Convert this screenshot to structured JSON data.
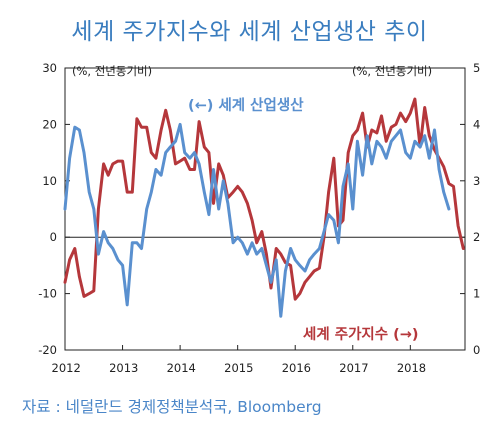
{
  "title": "세계 주가지수와 세계 산업생산 추이",
  "source": "자료 : 네덜란드 경제정책분석국, Bloomberg",
  "chart_data": {
    "type": "line",
    "left_unit": "(%, 전년동기비)",
    "right_unit": "(%, 전년동기비)",
    "x_ticks": [
      "2012",
      "2013",
      "2014",
      "2015",
      "2016",
      "2017",
      "2018"
    ],
    "left_ticks": [
      "30",
      "20",
      "10",
      "0",
      "-10",
      "-20"
    ],
    "right_ticks": [
      "5",
      "4",
      "3",
      "2",
      "1",
      "0"
    ],
    "left_ylim": [
      -20,
      30
    ],
    "right_ylim": [
      0,
      5
    ],
    "x_range": [
      2012.0,
      2018.95
    ],
    "colors": {
      "production": "#5a90cf",
      "stock": "#b5373b"
    },
    "series": [
      {
        "name": "(←) 세계 산업생산",
        "axis": "left",
        "x": [
          2012.0,
          2012.08,
          2012.17,
          2012.25,
          2012.33,
          2012.42,
          2012.5,
          2012.58,
          2012.67,
          2012.75,
          2012.83,
          2012.92,
          2013.0,
          2013.08,
          2013.17,
          2013.25,
          2013.33,
          2013.42,
          2013.5,
          2013.58,
          2013.67,
          2013.75,
          2013.83,
          2013.92,
          2014.0,
          2014.08,
          2014.17,
          2014.25,
          2014.33,
          2014.42,
          2014.5,
          2014.58,
          2014.67,
          2014.75,
          2014.83,
          2014.92,
          2015.0,
          2015.08,
          2015.17,
          2015.25,
          2015.33,
          2015.42,
          2015.5,
          2015.58,
          2015.67,
          2015.75,
          2015.83,
          2015.92,
          2016.0,
          2016.08,
          2016.17,
          2016.25,
          2016.33,
          2016.42,
          2016.5,
          2016.58,
          2016.67,
          2016.75,
          2016.83,
          2016.92,
          2017.0,
          2017.08,
          2017.17,
          2017.25,
          2017.33,
          2017.42,
          2017.5,
          2017.58,
          2017.67,
          2017.75,
          2017.83,
          2017.92,
          2018.0,
          2018.08,
          2018.17,
          2018.25,
          2018.33,
          2018.42,
          2018.5,
          2018.58,
          2018.67
        ],
        "values": [
          5,
          14,
          19.5,
          19,
          15,
          8,
          5,
          -3,
          1,
          -1,
          -2,
          -4,
          -5,
          -12,
          -1,
          -1,
          -2,
          5,
          8,
          12,
          11,
          15,
          16,
          17,
          20,
          15,
          14,
          15,
          13,
          8,
          4,
          12,
          5,
          10,
          6,
          -1,
          0,
          -1,
          -3,
          -1,
          -3,
          -2,
          -5,
          -8,
          -4,
          -14,
          -6,
          -2,
          -4,
          -5,
          -6,
          -4,
          -3,
          -2,
          1,
          4,
          3,
          -1,
          9,
          13,
          5,
          17,
          11,
          18,
          13,
          17,
          16,
          14,
          17,
          18,
          19,
          15,
          14,
          17,
          16,
          18,
          14,
          19,
          12,
          8,
          5
        ]
      },
      {
        "name": "세계 주가지수 (→)",
        "axis": "right",
        "x": [
          2012.0,
          2012.08,
          2012.17,
          2012.25,
          2012.33,
          2012.42,
          2012.5,
          2012.58,
          2012.67,
          2012.75,
          2012.83,
          2012.92,
          2013.0,
          2013.08,
          2013.17,
          2013.25,
          2013.33,
          2013.42,
          2013.5,
          2013.58,
          2013.67,
          2013.75,
          2013.83,
          2013.92,
          2014.0,
          2014.08,
          2014.17,
          2014.25,
          2014.33,
          2014.42,
          2014.5,
          2014.58,
          2014.67,
          2014.75,
          2014.83,
          2014.92,
          2015.0,
          2015.08,
          2015.17,
          2015.25,
          2015.33,
          2015.42,
          2015.5,
          2015.58,
          2015.67,
          2015.75,
          2015.83,
          2015.92,
          2016.0,
          2016.08,
          2016.17,
          2016.25,
          2016.33,
          2016.42,
          2016.5,
          2016.58,
          2016.67,
          2016.75,
          2016.83,
          2016.92,
          2017.0,
          2017.08,
          2017.17,
          2017.25,
          2017.33,
          2017.42,
          2017.5,
          2017.58,
          2017.67,
          2017.75,
          2017.83,
          2017.92,
          2018.0,
          2018.08,
          2018.17,
          2018.25,
          2018.33,
          2018.42,
          2018.5,
          2018.58,
          2018.67,
          2018.75,
          2018.83,
          2018.92
        ],
        "values": [
          1.2,
          1.6,
          1.8,
          1.3,
          0.95,
          1.0,
          1.05,
          2.5,
          3.3,
          3.1,
          3.3,
          3.35,
          3.35,
          2.8,
          2.8,
          4.1,
          3.95,
          3.95,
          3.5,
          3.4,
          3.9,
          4.25,
          3.9,
          3.3,
          3.35,
          3.4,
          3.2,
          3.2,
          4.05,
          3.6,
          3.5,
          2.6,
          3.3,
          3.1,
          2.7,
          2.8,
          2.9,
          2.8,
          2.6,
          2.3,
          1.9,
          2.1,
          1.7,
          1.1,
          1.8,
          1.7,
          1.55,
          1.5,
          0.9,
          1.0,
          1.2,
          1.3,
          1.4,
          1.45,
          2.0,
          2.8,
          3.4,
          2.2,
          2.3,
          3.5,
          3.8,
          3.9,
          4.2,
          3.6,
          3.9,
          3.85,
          4.15,
          3.7,
          3.95,
          4.0,
          4.2,
          4.05,
          4.2,
          4.45,
          3.6,
          4.3,
          3.8,
          3.55,
          3.4,
          3.25,
          2.95,
          2.9,
          2.2,
          1.8
        ]
      }
    ]
  }
}
